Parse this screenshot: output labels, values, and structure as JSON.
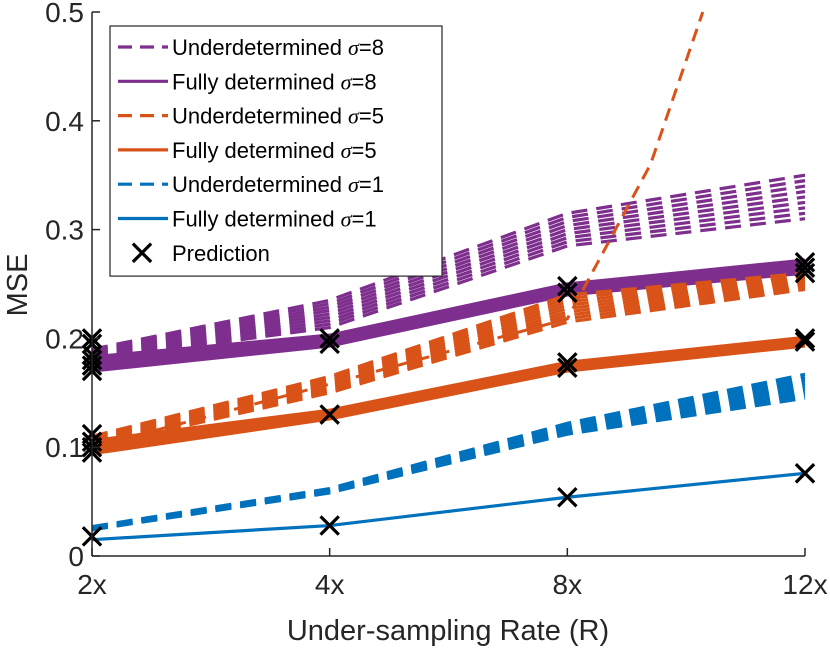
{
  "chart_data": {
    "type": "line",
    "xlabel": "Under-sampling Rate (R)",
    "ylabel": "MSE",
    "categories": [
      "2x",
      "4x",
      "8x",
      "12x"
    ],
    "y_ticks": [
      0,
      0.1,
      0.2,
      0.3,
      0.4,
      0.5
    ],
    "y_tick_labels": [
      "0",
      "0.1",
      "0.2",
      "0.3",
      "0.4",
      "0.5"
    ],
    "ylim": [
      0,
      0.5
    ],
    "grid": false,
    "legend_position": "top-left",
    "colors": {
      "purple": "#7E2F8E",
      "orange": "#D95319",
      "blue": "#0072BD",
      "black": "#000000"
    },
    "series": [
      {
        "name": "Underdetermined",
        "sigma": "8",
        "color": "#7E2F8E",
        "style": "dashed",
        "thick": true,
        "values": [
          0.185,
          0.225,
          0.305,
          0.33
        ],
        "spread": [
          [
            0.18,
            0.19
          ],
          [
            0.21,
            0.235
          ],
          [
            0.285,
            0.315
          ],
          [
            0.31,
            0.35
          ]
        ]
      },
      {
        "name": "Fully determined",
        "sigma": "8",
        "color": "#7E2F8E",
        "style": "solid",
        "thick": true,
        "values": [
          0.176,
          0.198,
          0.244,
          0.265
        ],
        "spread": [
          [
            0.17,
            0.183
          ],
          [
            0.193,
            0.203
          ],
          [
            0.24,
            0.25
          ],
          [
            0.26,
            0.272
          ]
        ]
      },
      {
        "name": "Underdetermined",
        "sigma": "5",
        "color": "#D95319",
        "style": "dashed",
        "thick": true,
        "values": [
          0.105,
          0.158,
          0.228,
          0.252
        ],
        "spread": [
          [
            0.1,
            0.11
          ],
          [
            0.15,
            0.165
          ],
          [
            0.215,
            0.24
          ],
          [
            0.245,
            0.26
          ]
        ]
      },
      {
        "name": "Underdetermined",
        "sigma": "5",
        "color": "#D95319",
        "style": "dashed",
        "thick": false,
        "outlier": true,
        "x": [
          0,
          1,
          2,
          2.35,
          2.57
        ],
        "values": [
          0.1,
          0.158,
          0.218,
          0.36,
          0.5
        ]
      },
      {
        "name": "Fully determined",
        "sigma": "5",
        "color": "#D95319",
        "style": "solid",
        "thick": true,
        "values": [
          0.1,
          0.13,
          0.174,
          0.197
        ],
        "spread": [
          [
            0.094,
            0.106
          ],
          [
            0.126,
            0.134
          ],
          [
            0.17,
            0.178
          ],
          [
            0.193,
            0.201
          ]
        ]
      },
      {
        "name": "Underdetermined",
        "sigma": "1",
        "color": "#0072BD",
        "style": "dashed",
        "thick": true,
        "values": [
          0.025,
          0.06,
          0.117,
          0.155
        ],
        "spread": [
          [
            0.024,
            0.027
          ],
          [
            0.058,
            0.062
          ],
          [
            0.112,
            0.122
          ],
          [
            0.145,
            0.167
          ]
        ]
      },
      {
        "name": "Fully determined",
        "sigma": "1",
        "color": "#0072BD",
        "style": "solid",
        "thick": false,
        "values": [
          0.015,
          0.028,
          0.054,
          0.076
        ]
      }
    ],
    "predictions": [
      {
        "x": "2x",
        "values": [
          0.185,
          0.18,
          0.175,
          0.17,
          0.195,
          0.2
        ]
      },
      {
        "x": "2x",
        "values": [
          0.112,
          0.105,
          0.1,
          0.095
        ]
      },
      {
        "x": "2x",
        "values": [
          0.018
        ]
      },
      {
        "x": "4x",
        "values": [
          0.2,
          0.195
        ]
      },
      {
        "x": "4x",
        "values": [
          0.13
        ]
      },
      {
        "x": "4x",
        "values": [
          0.028
        ]
      },
      {
        "x": "8x",
        "values": [
          0.248,
          0.242
        ]
      },
      {
        "x": "8x",
        "values": [
          0.178,
          0.173
        ]
      },
      {
        "x": "8x",
        "values": [
          0.054
        ]
      },
      {
        "x": "12x",
        "values": [
          0.27,
          0.265,
          0.26
        ]
      },
      {
        "x": "12x",
        "values": [
          0.2,
          0.197
        ]
      },
      {
        "x": "12x",
        "values": [
          0.076
        ]
      }
    ],
    "legend": [
      {
        "label": "Underdetermined",
        "sigma": "8",
        "color": "#7E2F8E",
        "style": "dashed"
      },
      {
        "label": "Fully determined",
        "sigma": "8",
        "color": "#7E2F8E",
        "style": "solid"
      },
      {
        "label": "Underdetermined",
        "sigma": "5",
        "color": "#D95319",
        "style": "dashed"
      },
      {
        "label": "Fully determined",
        "sigma": "5",
        "color": "#D95319",
        "style": "solid"
      },
      {
        "label": "Underdetermined",
        "sigma": "1",
        "color": "#0072BD",
        "style": "dashed"
      },
      {
        "label": "Fully determined",
        "sigma": "1",
        "color": "#0072BD",
        "style": "solid"
      },
      {
        "label": "Prediction",
        "sigma": null,
        "color": "#000000",
        "style": "marker-x"
      }
    ],
    "sigma_symbol": "σ",
    "equals": "="
  }
}
